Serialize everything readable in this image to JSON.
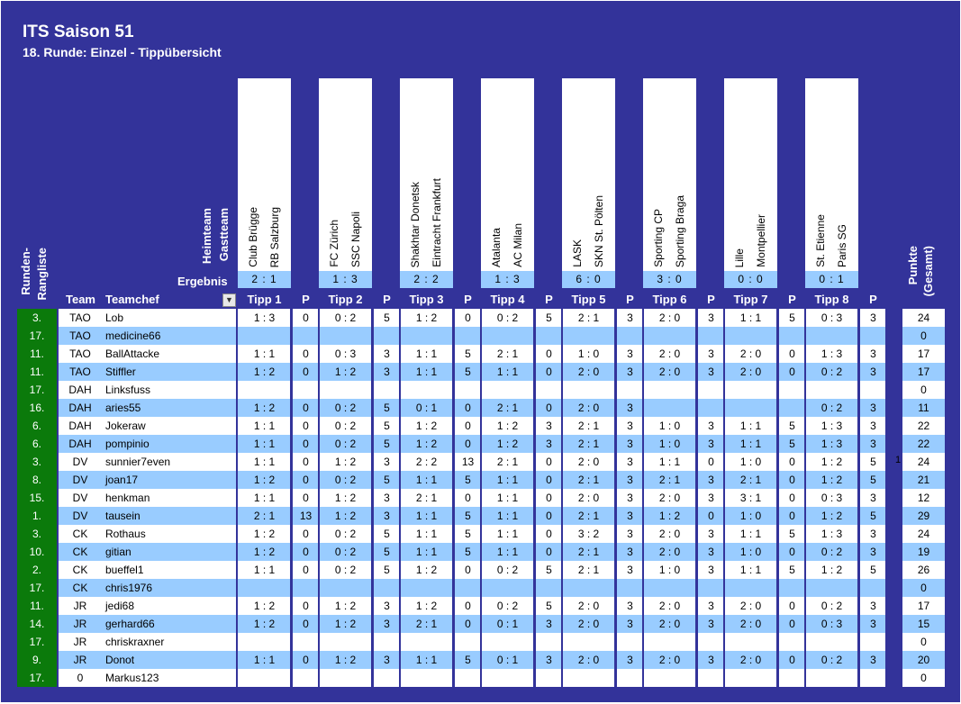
{
  "title": "ITS Saison 51",
  "subtitle": "18. Runde: Einzel - Tippübersicht",
  "header": {
    "heimteam": "Heimteam",
    "gastteam": "Gastteam",
    "ergebnis": "Ergebnis",
    "runden": "Runden-",
    "rangliste": "Rangliste",
    "team": "Team",
    "teamchef": "Teamchef",
    "filter_icon": "dropdown-arrow-icon",
    "p": "P",
    "punkte": "Punkte",
    "gesamt": "(Gesamt)"
  },
  "matches": [
    {
      "home": "Club Brügge",
      "away": "RB Salzburg",
      "result": "2 : 1",
      "tipp": "Tipp 1"
    },
    {
      "home": "FC Zürich",
      "away": "SSC Napoli",
      "result": "1 : 3",
      "tipp": "Tipp 2"
    },
    {
      "home": "Shakhtar Donetsk",
      "away": "Eintracht Frankfurt",
      "result": "2 : 2",
      "tipp": "Tipp 3"
    },
    {
      "home": "Atalanta",
      "away": "AC Milan",
      "result": "1 : 3",
      "tipp": "Tipp 4"
    },
    {
      "home": "LASK",
      "away": "SKN St. Pölten",
      "result": "6 : 0",
      "tipp": "Tipp 5"
    },
    {
      "home": "Sporting CP",
      "away": "Sporting Braga",
      "result": "3 : 0",
      "tipp": "Tipp 6"
    },
    {
      "home": "Lille",
      "away": "Montpellier",
      "result": "0 : 0",
      "tipp": "Tipp 7"
    },
    {
      "home": "St. Etienne",
      "away": "Paris SG",
      "result": "0 : 1",
      "tipp": "Tipp 8"
    }
  ],
  "extra_mark": "1",
  "colors": {
    "background": "#33339a",
    "row_alt": "#99ccff",
    "rank_bg": "#0b7a0b"
  },
  "rows": [
    {
      "rank": "3.",
      "team": "TAO",
      "chef": "Lob",
      "tipps": [
        [
          "1 : 3",
          "0"
        ],
        [
          "0 : 2",
          "5"
        ],
        [
          "1 : 2",
          "0"
        ],
        [
          "0 : 2",
          "5"
        ],
        [
          "2 : 1",
          "3"
        ],
        [
          "2 : 0",
          "3"
        ],
        [
          "1 : 1",
          "5"
        ],
        [
          "0 : 3",
          "3"
        ]
      ],
      "total": "24"
    },
    {
      "rank": "17.",
      "team": "TAO",
      "chef": "medicine66",
      "tipps": [
        [
          "",
          ""
        ],
        [
          "",
          ""
        ],
        [
          "",
          ""
        ],
        [
          "",
          ""
        ],
        [
          "",
          ""
        ],
        [
          "",
          ""
        ],
        [
          "",
          ""
        ],
        [
          "",
          ""
        ]
      ],
      "total": "0"
    },
    {
      "rank": "11.",
      "team": "TAO",
      "chef": "BallAttacke",
      "tipps": [
        [
          "1 : 1",
          "0"
        ],
        [
          "0 : 3",
          "3"
        ],
        [
          "1 : 1",
          "5"
        ],
        [
          "2 : 1",
          "0"
        ],
        [
          "1 : 0",
          "3"
        ],
        [
          "2 : 0",
          "3"
        ],
        [
          "2 : 0",
          "0"
        ],
        [
          "1 : 3",
          "3"
        ]
      ],
      "total": "17"
    },
    {
      "rank": "11.",
      "team": "TAO",
      "chef": "Stiffler",
      "tipps": [
        [
          "1 : 2",
          "0"
        ],
        [
          "1 : 2",
          "3"
        ],
        [
          "1 : 1",
          "5"
        ],
        [
          "1 : 1",
          "0"
        ],
        [
          "2 : 0",
          "3"
        ],
        [
          "2 : 0",
          "3"
        ],
        [
          "2 : 0",
          "0"
        ],
        [
          "0 : 2",
          "3"
        ]
      ],
      "total": "17"
    },
    {
      "rank": "17.",
      "team": "DAH",
      "chef": "Linksfuss",
      "tipps": [
        [
          "",
          ""
        ],
        [
          "",
          ""
        ],
        [
          "",
          ""
        ],
        [
          "",
          ""
        ],
        [
          "",
          ""
        ],
        [
          "",
          ""
        ],
        [
          "",
          ""
        ],
        [
          "",
          ""
        ]
      ],
      "total": "0"
    },
    {
      "rank": "16.",
      "team": "DAH",
      "chef": "aries55",
      "tipps": [
        [
          "1 : 2",
          "0"
        ],
        [
          "0 : 2",
          "5"
        ],
        [
          "0 : 1",
          "0"
        ],
        [
          "2 : 1",
          "0"
        ],
        [
          "2 : 0",
          "3"
        ],
        [
          "",
          ""
        ],
        [
          "",
          ""
        ],
        [
          "0 : 2",
          "3"
        ]
      ],
      "total": "11"
    },
    {
      "rank": "6.",
      "team": "DAH",
      "chef": "Jokeraw",
      "tipps": [
        [
          "1 : 1",
          "0"
        ],
        [
          "0 : 2",
          "5"
        ],
        [
          "1 : 2",
          "0"
        ],
        [
          "1 : 2",
          "3"
        ],
        [
          "2 : 1",
          "3"
        ],
        [
          "1 : 0",
          "3"
        ],
        [
          "1 : 1",
          "5"
        ],
        [
          "1 : 3",
          "3"
        ]
      ],
      "total": "22"
    },
    {
      "rank": "6.",
      "team": "DAH",
      "chef": "pompinio",
      "tipps": [
        [
          "1 : 1",
          "0"
        ],
        [
          "0 : 2",
          "5"
        ],
        [
          "1 : 2",
          "0"
        ],
        [
          "1 : 2",
          "3"
        ],
        [
          "2 : 1",
          "3"
        ],
        [
          "1 : 0",
          "3"
        ],
        [
          "1 : 1",
          "5"
        ],
        [
          "1 : 3",
          "3"
        ]
      ],
      "total": "22"
    },
    {
      "rank": "3.",
      "team": "DV",
      "chef": "sunnier7even",
      "tipps": [
        [
          "1 : 1",
          "0"
        ],
        [
          "1 : 2",
          "3"
        ],
        [
          "2 : 2",
          "13"
        ],
        [
          "2 : 1",
          "0"
        ],
        [
          "2 : 0",
          "3"
        ],
        [
          "1 : 1",
          "0"
        ],
        [
          "1 : 0",
          "0"
        ],
        [
          "1 : 2",
          "5"
        ]
      ],
      "total": "24"
    },
    {
      "rank": "8.",
      "team": "DV",
      "chef": "joan17",
      "tipps": [
        [
          "1 : 2",
          "0"
        ],
        [
          "0 : 2",
          "5"
        ],
        [
          "1 : 1",
          "5"
        ],
        [
          "1 : 1",
          "0"
        ],
        [
          "2 : 1",
          "3"
        ],
        [
          "2 : 1",
          "3"
        ],
        [
          "2 : 1",
          "0"
        ],
        [
          "1 : 2",
          "5"
        ]
      ],
      "total": "21"
    },
    {
      "rank": "15.",
      "team": "DV",
      "chef": "henkman",
      "tipps": [
        [
          "1 : 1",
          "0"
        ],
        [
          "1 : 2",
          "3"
        ],
        [
          "2 : 1",
          "0"
        ],
        [
          "1 : 1",
          "0"
        ],
        [
          "2 : 0",
          "3"
        ],
        [
          "2 : 0",
          "3"
        ],
        [
          "3 : 1",
          "0"
        ],
        [
          "0 : 3",
          "3"
        ]
      ],
      "total": "12"
    },
    {
      "rank": "1.",
      "team": "DV",
      "chef": "tausein",
      "tipps": [
        [
          "2 : 1",
          "13"
        ],
        [
          "1 : 2",
          "3"
        ],
        [
          "1 : 1",
          "5"
        ],
        [
          "1 : 1",
          "0"
        ],
        [
          "2 : 1",
          "3"
        ],
        [
          "1 : 2",
          "0"
        ],
        [
          "1 : 0",
          "0"
        ],
        [
          "1 : 2",
          "5"
        ]
      ],
      "total": "29"
    },
    {
      "rank": "3.",
      "team": "CK",
      "chef": "Rothaus",
      "tipps": [
        [
          "1 : 2",
          "0"
        ],
        [
          "0 : 2",
          "5"
        ],
        [
          "1 : 1",
          "5"
        ],
        [
          "1 : 1",
          "0"
        ],
        [
          "3 : 2",
          "3"
        ],
        [
          "2 : 0",
          "3"
        ],
        [
          "1 : 1",
          "5"
        ],
        [
          "1 : 3",
          "3"
        ]
      ],
      "total": "24"
    },
    {
      "rank": "10.",
      "team": "CK",
      "chef": "gitian",
      "tipps": [
        [
          "1 : 2",
          "0"
        ],
        [
          "0 : 2",
          "5"
        ],
        [
          "1 : 1",
          "5"
        ],
        [
          "1 : 1",
          "0"
        ],
        [
          "2 : 1",
          "3"
        ],
        [
          "2 : 0",
          "3"
        ],
        [
          "1 : 0",
          "0"
        ],
        [
          "0 : 2",
          "3"
        ]
      ],
      "total": "19"
    },
    {
      "rank": "2.",
      "team": "CK",
      "chef": "bueffel1",
      "tipps": [
        [
          "1 : 1",
          "0"
        ],
        [
          "0 : 2",
          "5"
        ],
        [
          "1 : 2",
          "0"
        ],
        [
          "0 : 2",
          "5"
        ],
        [
          "2 : 1",
          "3"
        ],
        [
          "1 : 0",
          "3"
        ],
        [
          "1 : 1",
          "5"
        ],
        [
          "1 : 2",
          "5"
        ]
      ],
      "total": "26"
    },
    {
      "rank": "17.",
      "team": "CK",
      "chef": "chris1976",
      "tipps": [
        [
          "",
          ""
        ],
        [
          "",
          ""
        ],
        [
          "",
          ""
        ],
        [
          "",
          ""
        ],
        [
          "",
          ""
        ],
        [
          "",
          ""
        ],
        [
          "",
          ""
        ],
        [
          "",
          ""
        ]
      ],
      "total": "0"
    },
    {
      "rank": "11.",
      "team": "JR",
      "chef": "jedi68",
      "tipps": [
        [
          "1 : 2",
          "0"
        ],
        [
          "1 : 2",
          "3"
        ],
        [
          "1 : 2",
          "0"
        ],
        [
          "0 : 2",
          "5"
        ],
        [
          "2 : 0",
          "3"
        ],
        [
          "2 : 0",
          "3"
        ],
        [
          "2 : 0",
          "0"
        ],
        [
          "0 : 2",
          "3"
        ]
      ],
      "total": "17"
    },
    {
      "rank": "14.",
      "team": "JR",
      "chef": "gerhard66",
      "tipps": [
        [
          "1 : 2",
          "0"
        ],
        [
          "1 : 2",
          "3"
        ],
        [
          "2 : 1",
          "0"
        ],
        [
          "0 : 1",
          "3"
        ],
        [
          "2 : 0",
          "3"
        ],
        [
          "2 : 0",
          "3"
        ],
        [
          "2 : 0",
          "0"
        ],
        [
          "0 : 3",
          "3"
        ]
      ],
      "total": "15"
    },
    {
      "rank": "17.",
      "team": "JR",
      "chef": "chriskraxner",
      "tipps": [
        [
          "",
          ""
        ],
        [
          "",
          ""
        ],
        [
          "",
          ""
        ],
        [
          "",
          ""
        ],
        [
          "",
          ""
        ],
        [
          "",
          ""
        ],
        [
          "",
          ""
        ],
        [
          "",
          ""
        ]
      ],
      "total": "0"
    },
    {
      "rank": "9.",
      "team": "JR",
      "chef": "Donot",
      "tipps": [
        [
          "1 : 1",
          "0"
        ],
        [
          "1 : 2",
          "3"
        ],
        [
          "1 : 1",
          "5"
        ],
        [
          "0 : 1",
          "3"
        ],
        [
          "2 : 0",
          "3"
        ],
        [
          "2 : 0",
          "3"
        ],
        [
          "2 : 0",
          "0"
        ],
        [
          "0 : 2",
          "3"
        ]
      ],
      "total": "20"
    },
    {
      "rank": "17.",
      "team": "0",
      "chef": "Markus123",
      "tipps": [
        [
          "",
          ""
        ],
        [
          "",
          ""
        ],
        [
          "",
          ""
        ],
        [
          "",
          ""
        ],
        [
          "",
          ""
        ],
        [
          "",
          ""
        ],
        [
          "",
          ""
        ],
        [
          "",
          ""
        ]
      ],
      "total": "0"
    }
  ]
}
